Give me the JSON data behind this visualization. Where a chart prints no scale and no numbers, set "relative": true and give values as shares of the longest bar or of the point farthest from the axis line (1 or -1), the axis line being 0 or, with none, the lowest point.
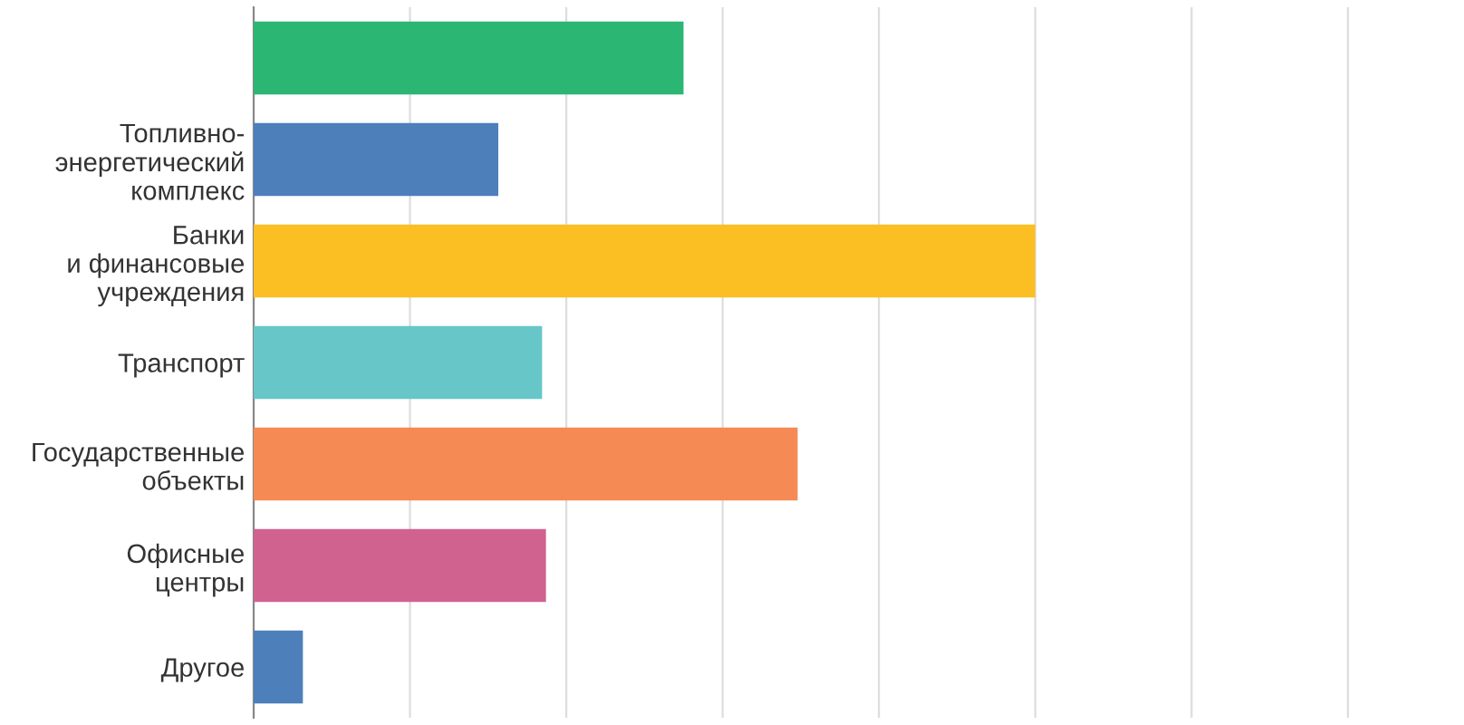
{
  "chart_data": {
    "type": "bar",
    "orientation": "horizontal",
    "relative": true,
    "grid": "x",
    "categories": [
      null,
      "Топливно-\nэнергетический\nкомплекс",
      "Банки\nи финансовые\nучреждения",
      "Транспорт",
      "Государственные\nобъекты",
      "Офисные\nцентры",
      "Другое"
    ],
    "values": [
      0.55,
      0.313,
      1,
      0.369,
      0.696,
      0.374,
      0.063
    ],
    "colors": [
      "#2bb673",
      "#4d7fbb",
      "#fbbf24",
      "#66c6c8",
      "#f58a55",
      "#d06290",
      "#4d7fbb"
    ]
  }
}
